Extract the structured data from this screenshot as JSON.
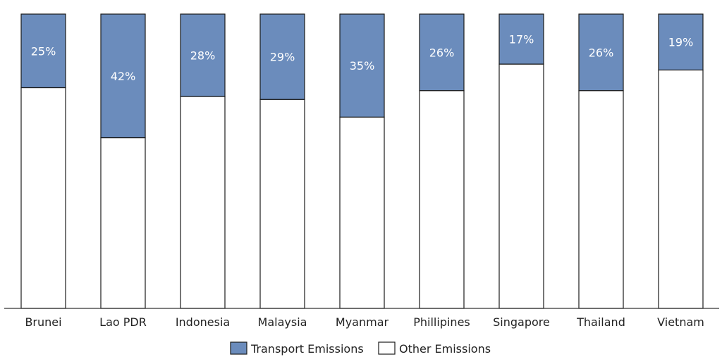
{
  "chart_data": {
    "type": "bar",
    "stacked": true,
    "percent_scale": true,
    "title": "",
    "xlabel": "",
    "ylabel": "",
    "ylim": [
      0,
      100
    ],
    "grid": false,
    "legend_position": "bottom-center",
    "categories": [
      "Brunei",
      "Lao PDR",
      "Indonesia",
      "Malaysia",
      "Myanmar",
      "Phillipines",
      "Singapore",
      "Thailand",
      "Vietnam"
    ],
    "series": [
      {
        "name": "Transport Emissions",
        "color": "#6b8cbc",
        "values": [
          25,
          42,
          28,
          29,
          35,
          26,
          17,
          26,
          19
        ]
      },
      {
        "name": "Other Emissions",
        "color": "#ffffff",
        "values": [
          75,
          58,
          72,
          71,
          65,
          74,
          83,
          74,
          81
        ]
      }
    ],
    "data_labels": [
      "25%",
      "42%",
      "28%",
      "29%",
      "35%",
      "26%",
      "17%",
      "26%",
      "19%"
    ]
  }
}
